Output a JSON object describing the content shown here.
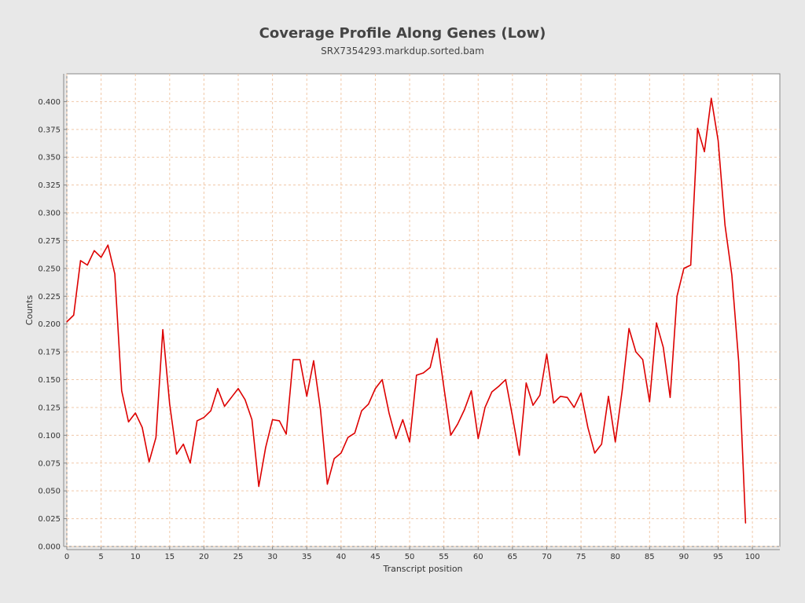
{
  "chart_data": {
    "type": "line",
    "title": "Coverage Profile Along Genes (Low)",
    "subtitle": "SRX7354293.markdup.sorted.bam",
    "xlabel": "Transcript position",
    "ylabel": "Counts",
    "xlim": [
      0,
      104
    ],
    "ylim": [
      0,
      0.425
    ],
    "grid": true,
    "x_ticks": [
      0,
      5,
      10,
      15,
      20,
      25,
      30,
      35,
      40,
      45,
      50,
      55,
      60,
      65,
      70,
      75,
      80,
      85,
      90,
      95,
      100
    ],
    "y_ticks": [
      "0.000",
      "0.025",
      "0.050",
      "0.075",
      "0.100",
      "0.125",
      "0.150",
      "0.175",
      "0.200",
      "0.225",
      "0.250",
      "0.275",
      "0.300",
      "0.325",
      "0.350",
      "0.375",
      "0.400"
    ],
    "series": [
      {
        "color": "#dd0000",
        "x": [
          0,
          1,
          2,
          3,
          4,
          5,
          6,
          7,
          8,
          9,
          10,
          11,
          12,
          13,
          14,
          15,
          16,
          17,
          18,
          19,
          20,
          21,
          22,
          23,
          24,
          25,
          26,
          27,
          28,
          29,
          30,
          31,
          32,
          33,
          34,
          35,
          36,
          37,
          38,
          39,
          40,
          41,
          42,
          43,
          44,
          45,
          46,
          47,
          48,
          49,
          50,
          51,
          52,
          53,
          54,
          55,
          56,
          57,
          58,
          59,
          60,
          61,
          62,
          63,
          64,
          65,
          66,
          67,
          68,
          69,
          70,
          71,
          72,
          73,
          74,
          75,
          76,
          77,
          78,
          79,
          80,
          81,
          82,
          83,
          84,
          85,
          86,
          87,
          88,
          89,
          90,
          91,
          92,
          93,
          94,
          95,
          96,
          97,
          98,
          99
        ],
        "y": [
          0.202,
          0.208,
          0.257,
          0.253,
          0.266,
          0.26,
          0.271,
          0.245,
          0.14,
          0.112,
          0.12,
          0.107,
          0.076,
          0.098,
          0.195,
          0.128,
          0.083,
          0.092,
          0.075,
          0.113,
          0.116,
          0.122,
          0.142,
          0.126,
          0.134,
          0.142,
          0.132,
          0.114,
          0.054,
          0.089,
          0.114,
          0.113,
          0.101,
          0.168,
          0.168,
          0.135,
          0.167,
          0.123,
          0.056,
          0.079,
          0.084,
          0.098,
          0.102,
          0.122,
          0.128,
          0.142,
          0.15,
          0.12,
          0.097,
          0.114,
          0.094,
          0.154,
          0.156,
          0.161,
          0.187,
          0.143,
          0.1,
          0.11,
          0.123,
          0.14,
          0.097,
          0.125,
          0.139,
          0.144,
          0.15,
          0.117,
          0.082,
          0.147,
          0.127,
          0.136,
          0.173,
          0.129,
          0.135,
          0.134,
          0.125,
          0.138,
          0.107,
          0.084,
          0.092,
          0.135,
          0.094,
          0.14,
          0.196,
          0.175,
          0.168,
          0.13,
          0.201,
          0.179,
          0.134,
          0.225,
          0.25,
          0.253,
          0.376,
          0.355,
          0.403,
          0.365,
          0.289,
          0.244,
          0.166,
          0.021
        ]
      }
    ]
  }
}
